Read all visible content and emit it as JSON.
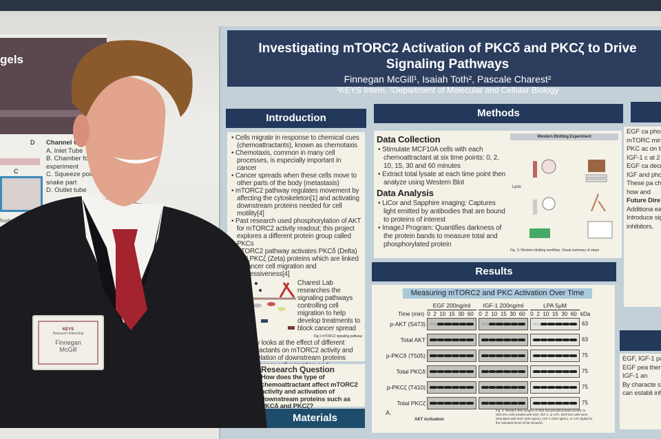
{
  "left_poster": {
    "title_fragment": "gels",
    "diagram_labels": [
      "D",
      "C"
    ],
    "components_title": "Channel Co",
    "components": [
      "A.  Inlet Tube",
      "B.  Chamber for experiment",
      "C.  Squeeze point snake part",
      "D.  Outlet tube"
    ],
    "caption_fragment": "fluidic chip"
  },
  "badge": {
    "org": "KEYS",
    "program": "Research Internship",
    "name_first": "Finnegan",
    "name_last": "McGill"
  },
  "poster": {
    "title": "Investigating mTORC2 Activation of PKCδ and PKCζ to Drive Signaling Pathways",
    "authors": "Finnegan McGill¹, Isaiah Toth², Pascale Charest²",
    "affiliations": "¹KEYS Intern, ²Department of Molecular and Cellular Biology",
    "introduction": {
      "heading": "Introduction",
      "bullets": [
        "Cells migrate in response to chemical cues (chemoattractants), known as chemotaxis",
        "Chemotaxis, common in many cell processes, is especially important in cancer",
        "Cancer spreads when these cells move to other parts of the body (metastasis)",
        "mTORC2 pathway regulates movement by affecting the cytoskeleton[1] and activating downstream proteins needed for cell motility[4]",
        "Past research used phosphorylation of AKT for mTORC2 activity readout; this project explores a different protein group called PKCs",
        "mTORC2 pathway activates PKCδ (Delta) and PKCζ (Zeta) proteins which are linked to cancer cell migration and aggressiveness[4]"
      ],
      "lab_text": "Charest Lab researches the signaling pathways controlling cell migration to help develop treatments to block cancer spread",
      "figure_caption": "Fig.1 mTORC2 signaling pathway",
      "study_text": "This study looks at the effect of different chemoattractants on mTORC2 activity and phosphorylation of downstream proteins linked to cancer cell migration and aggressiveness"
    },
    "research_question": {
      "heading": "Research Question",
      "text": "How does the type of chemoattractant affect mTORC2 activity and activation of downstream proteins such as PKCδ and PKCζ?"
    },
    "materials": {
      "heading": "Materials"
    },
    "methods": {
      "heading": "Methods",
      "data_collection": {
        "heading": "Data Collection",
        "bullets": [
          "Stimulate MCF10A cells with each chemoattractant at six time points: 0, 2, 10, 15, 30 and 60 minutes",
          "Extract total lysate at each time point then analyze using Western Blot"
        ]
      },
      "data_analysis": {
        "heading": "Data Analysis",
        "bullets": [
          "LiCor and Sapphire imaging: Captures light emitted by antibodies that are bound to proteins of interest",
          "ImageJ Program: Quantifies darkness of the protein bands to measure total and phosphorylated protein"
        ]
      },
      "figure_title": "Western Blotting Experiment",
      "figure_lysis": "Lysis",
      "figure_caption": "Fig. 3: Western blotting workflow. Visual summary of steps"
    },
    "results": {
      "heading": "Results",
      "figure_title": "Measuring mTORC2 and PKC Activation Over Time",
      "time_label": "Time (min)",
      "kda_label": "kDa",
      "treatments": [
        "EGF 200ng/ml",
        "IGF-1 200ng/ml",
        "LPA 5μM"
      ],
      "timepoints": [
        "0",
        "2",
        "10",
        "15",
        "30",
        "60"
      ],
      "rows": [
        {
          "label": "p-AKT (S473)",
          "kda": "63"
        },
        {
          "label": "Total AKT",
          "kda": "63"
        },
        {
          "label": "p-PKCδ (T505)",
          "kda": "75"
        },
        {
          "label": "Total PKCδ",
          "kda": "75"
        },
        {
          "label": "p-PKCζ (T410)",
          "kda": "75"
        },
        {
          "label": "Total PKCζ",
          "kda": "75"
        }
      ],
      "panel_label": "A.",
      "subchart_title": "AKT Activation",
      "fig4_caption": "Fig. 4: Western Blot images of total and phosphorylated protein in MCF10A cells treated with EGF, IGF-1, or LPA. MCF10A cells were stimulated with EGF (200 ng/mL), IGF-1 (200 ng/mL), or LPA (5μM) for the indicated times (0-60 minutes)."
    },
    "right_column": {
      "bullets": [
        "EGF ca phosph IGF-1 a mTORC minutes",
        "PKC ac on the c",
        "IGF-1 c at 2 min",
        "EGF ca decrease",
        "IGF and phospho",
        "These pa chemoat signaling how and"
      ],
      "future_heading": "Future Dire",
      "future": [
        "Additiona each che",
        "Introduce signaling inhibitors,"
      ],
      "conclusion": [
        "EGF, IGF-1 patterns in",
        "EGF pea then dec",
        "IGF-1 an",
        "By characte signaling pa can establi informs the"
      ]
    }
  }
}
